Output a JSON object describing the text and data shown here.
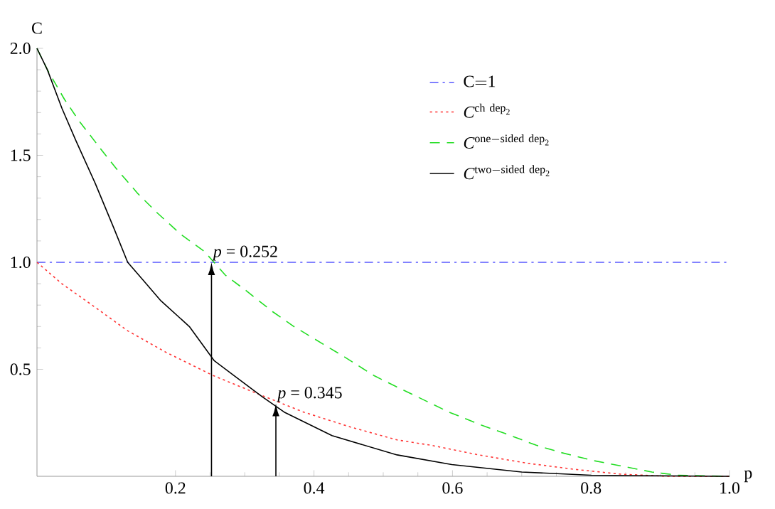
{
  "chart_data": {
    "type": "line",
    "xlabel": "p",
    "ylabel": "C",
    "xlim": [
      0,
      1.0
    ],
    "ylim": [
      0,
      2.0
    ],
    "xticks": [
      {
        "value": 0.2,
        "label": "0.2"
      },
      {
        "value": 0.4,
        "label": "0.4"
      },
      {
        "value": 0.6,
        "label": "0.6"
      },
      {
        "value": 0.8,
        "label": "0.8"
      },
      {
        "value": 1.0,
        "label": "1.0"
      }
    ],
    "yticks": [
      {
        "value": 0.5,
        "label": "0.5"
      },
      {
        "value": 1.0,
        "label": "1.0"
      },
      {
        "value": 1.5,
        "label": "1.5"
      },
      {
        "value": 2.0,
        "label": "2.0"
      }
    ],
    "legend": "top right",
    "series": [
      {
        "name": "\\mathrm{C{=}1}",
        "color": "#5a5aff",
        "line_style": "dashdot",
        "x": [
          0,
          1.0
        ],
        "values": [
          1,
          1
        ]
      },
      {
        "name": "\\mathit{C}^{\\mathrm{ch\\ dep}_{\\mathrm{2}}}",
        "color": "#ff3333",
        "line_style": "dotted",
        "x": [
          0,
          0.036,
          0.084,
          0.131,
          0.186,
          0.255,
          0.323,
          0.385,
          0.453,
          0.52,
          0.569,
          0.638,
          0.706,
          0.775,
          0.843,
          0.91,
          1.0
        ],
        "values": [
          1.0,
          0.9,
          0.79,
          0.68,
          0.58,
          0.47,
          0.38,
          0.3,
          0.23,
          0.17,
          0.145,
          0.1,
          0.062,
          0.033,
          0.01,
          0,
          0
        ]
      },
      {
        "name": "\\mathit{C}^{\\mathrm{one}-\\mathrm{sided\\ dep}_{\\mathrm{2}}}",
        "color": "#22dd22",
        "line_style": "dashed",
        "x": [
          0,
          0.015,
          0.04,
          0.061,
          0.092,
          0.114,
          0.146,
          0.174,
          0.208,
          0.242,
          0.272,
          0.301,
          0.34,
          0.371,
          0.412,
          0.443,
          0.487,
          0.518,
          0.563,
          0.595,
          0.641,
          0.676,
          0.721,
          0.758,
          0.804,
          0.841,
          0.888,
          0.925,
          1.0
        ],
        "values": [
          2.0,
          1.9,
          1.76,
          1.66,
          1.53,
          1.44,
          1.32,
          1.23,
          1.13,
          1.05,
          0.94,
          0.87,
          0.77,
          0.7,
          0.62,
          0.56,
          0.47,
          0.42,
          0.35,
          0.3,
          0.24,
          0.2,
          0.145,
          0.11,
          0.073,
          0.05,
          0.02,
          0.005,
          0
        ]
      },
      {
        "name": "\\mathit{C}^{\\mathrm{two}-\\mathrm{sided\\ dep}_{\\mathrm{2}}}",
        "color": "#000000",
        "line_style": "solid",
        "x": [
          0,
          0.015,
          0.036,
          0.056,
          0.084,
          0.111,
          0.131,
          0.155,
          0.179,
          0.22,
          0.256,
          0.289,
          0.326,
          0.357,
          0.426,
          0.52,
          0.599,
          0.7,
          0.8,
          1.0
        ],
        "values": [
          2.0,
          1.9,
          1.72,
          1.57,
          1.37,
          1.16,
          1.0,
          0.91,
          0.82,
          0.7,
          0.54,
          0.46,
          0.37,
          0.3,
          0.19,
          0.1,
          0.055,
          0.02,
          0.005,
          0
        ]
      }
    ],
    "annotations": [
      {
        "text": "*p* = 0.252",
        "x": 0.252,
        "y": 1.0
      },
      {
        "text": "*p* = 0.345",
        "x": 0.345,
        "y": 0.34
      }
    ]
  }
}
